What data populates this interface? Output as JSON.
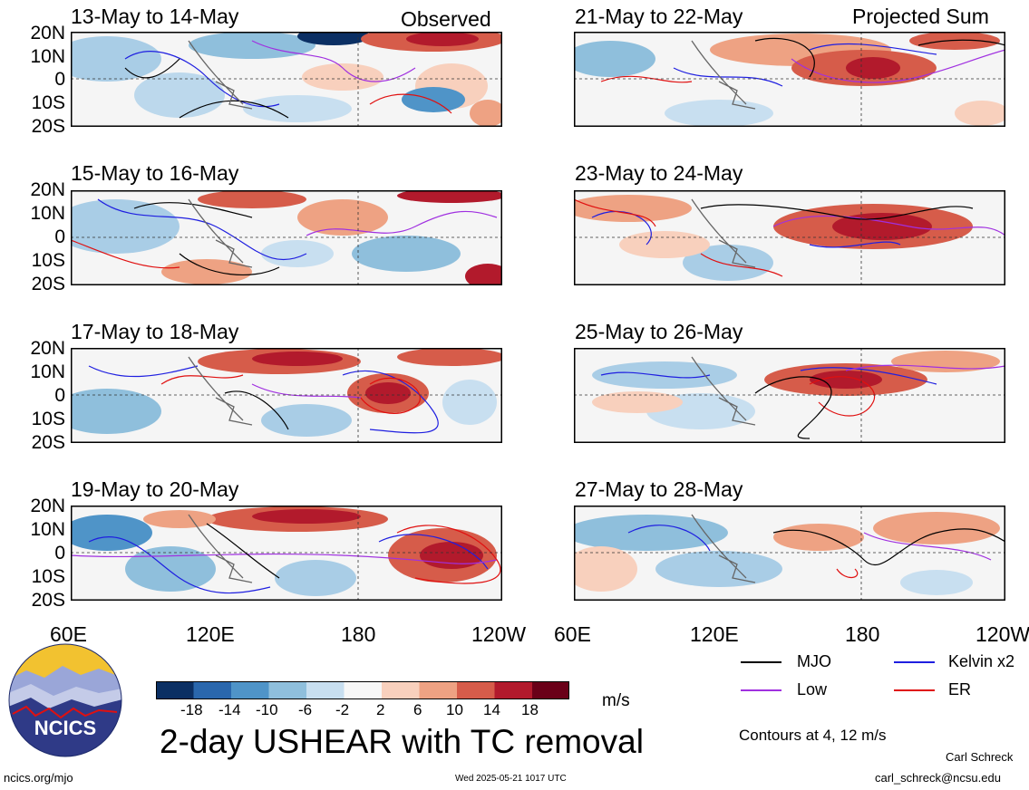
{
  "columns": {
    "left_header": "Observed",
    "right_header": "Projected Sum"
  },
  "panels": [
    {
      "title": "13-May to 14-May"
    },
    {
      "title": "15-May to 16-May"
    },
    {
      "title": "17-May to 18-May"
    },
    {
      "title": "19-May to 20-May"
    },
    {
      "title": "21-May to 22-May"
    },
    {
      "title": "23-May to 24-May"
    },
    {
      "title": "25-May to 26-May"
    },
    {
      "title": "27-May to 28-May"
    }
  ],
  "latitude_labels": [
    "20N",
    "10N",
    "0",
    "10S",
    "20S"
  ],
  "longitude_labels": [
    "60E",
    "120E",
    "180",
    "120W"
  ],
  "legend": {
    "items": [
      {
        "label": "MJO",
        "color": "#000000"
      },
      {
        "label": "Kelvin x2",
        "color": "#1f1fe0"
      },
      {
        "label": "Low",
        "color": "#a030e0"
      },
      {
        "label": "ER",
        "color": "#e01010"
      }
    ],
    "contours_note": "Contours at 4, 12 m/s"
  },
  "colorbar": {
    "ticks": [
      "-18",
      "-14",
      "-10",
      "-6",
      "-2",
      "2",
      "6",
      "10",
      "14",
      "18"
    ],
    "units": "m/s",
    "colors": [
      "#0b2f63",
      "#2a67ad",
      "#4f94c8",
      "#8fbfdc",
      "#c8dff0",
      "#f7f7f7",
      "#f8d0bd",
      "#eea283",
      "#d65c4a",
      "#b21a2c",
      "#6a0018"
    ]
  },
  "main_title": "2-day USHEAR with TC removal",
  "logo_text": "NCICS",
  "footer": {
    "url": "ncics.org/mjo",
    "timestamp": "Wed 2025-05-21 1017 UTC",
    "author": "Carl Schreck",
    "email": "carl_schreck@ncsu.edu"
  }
}
